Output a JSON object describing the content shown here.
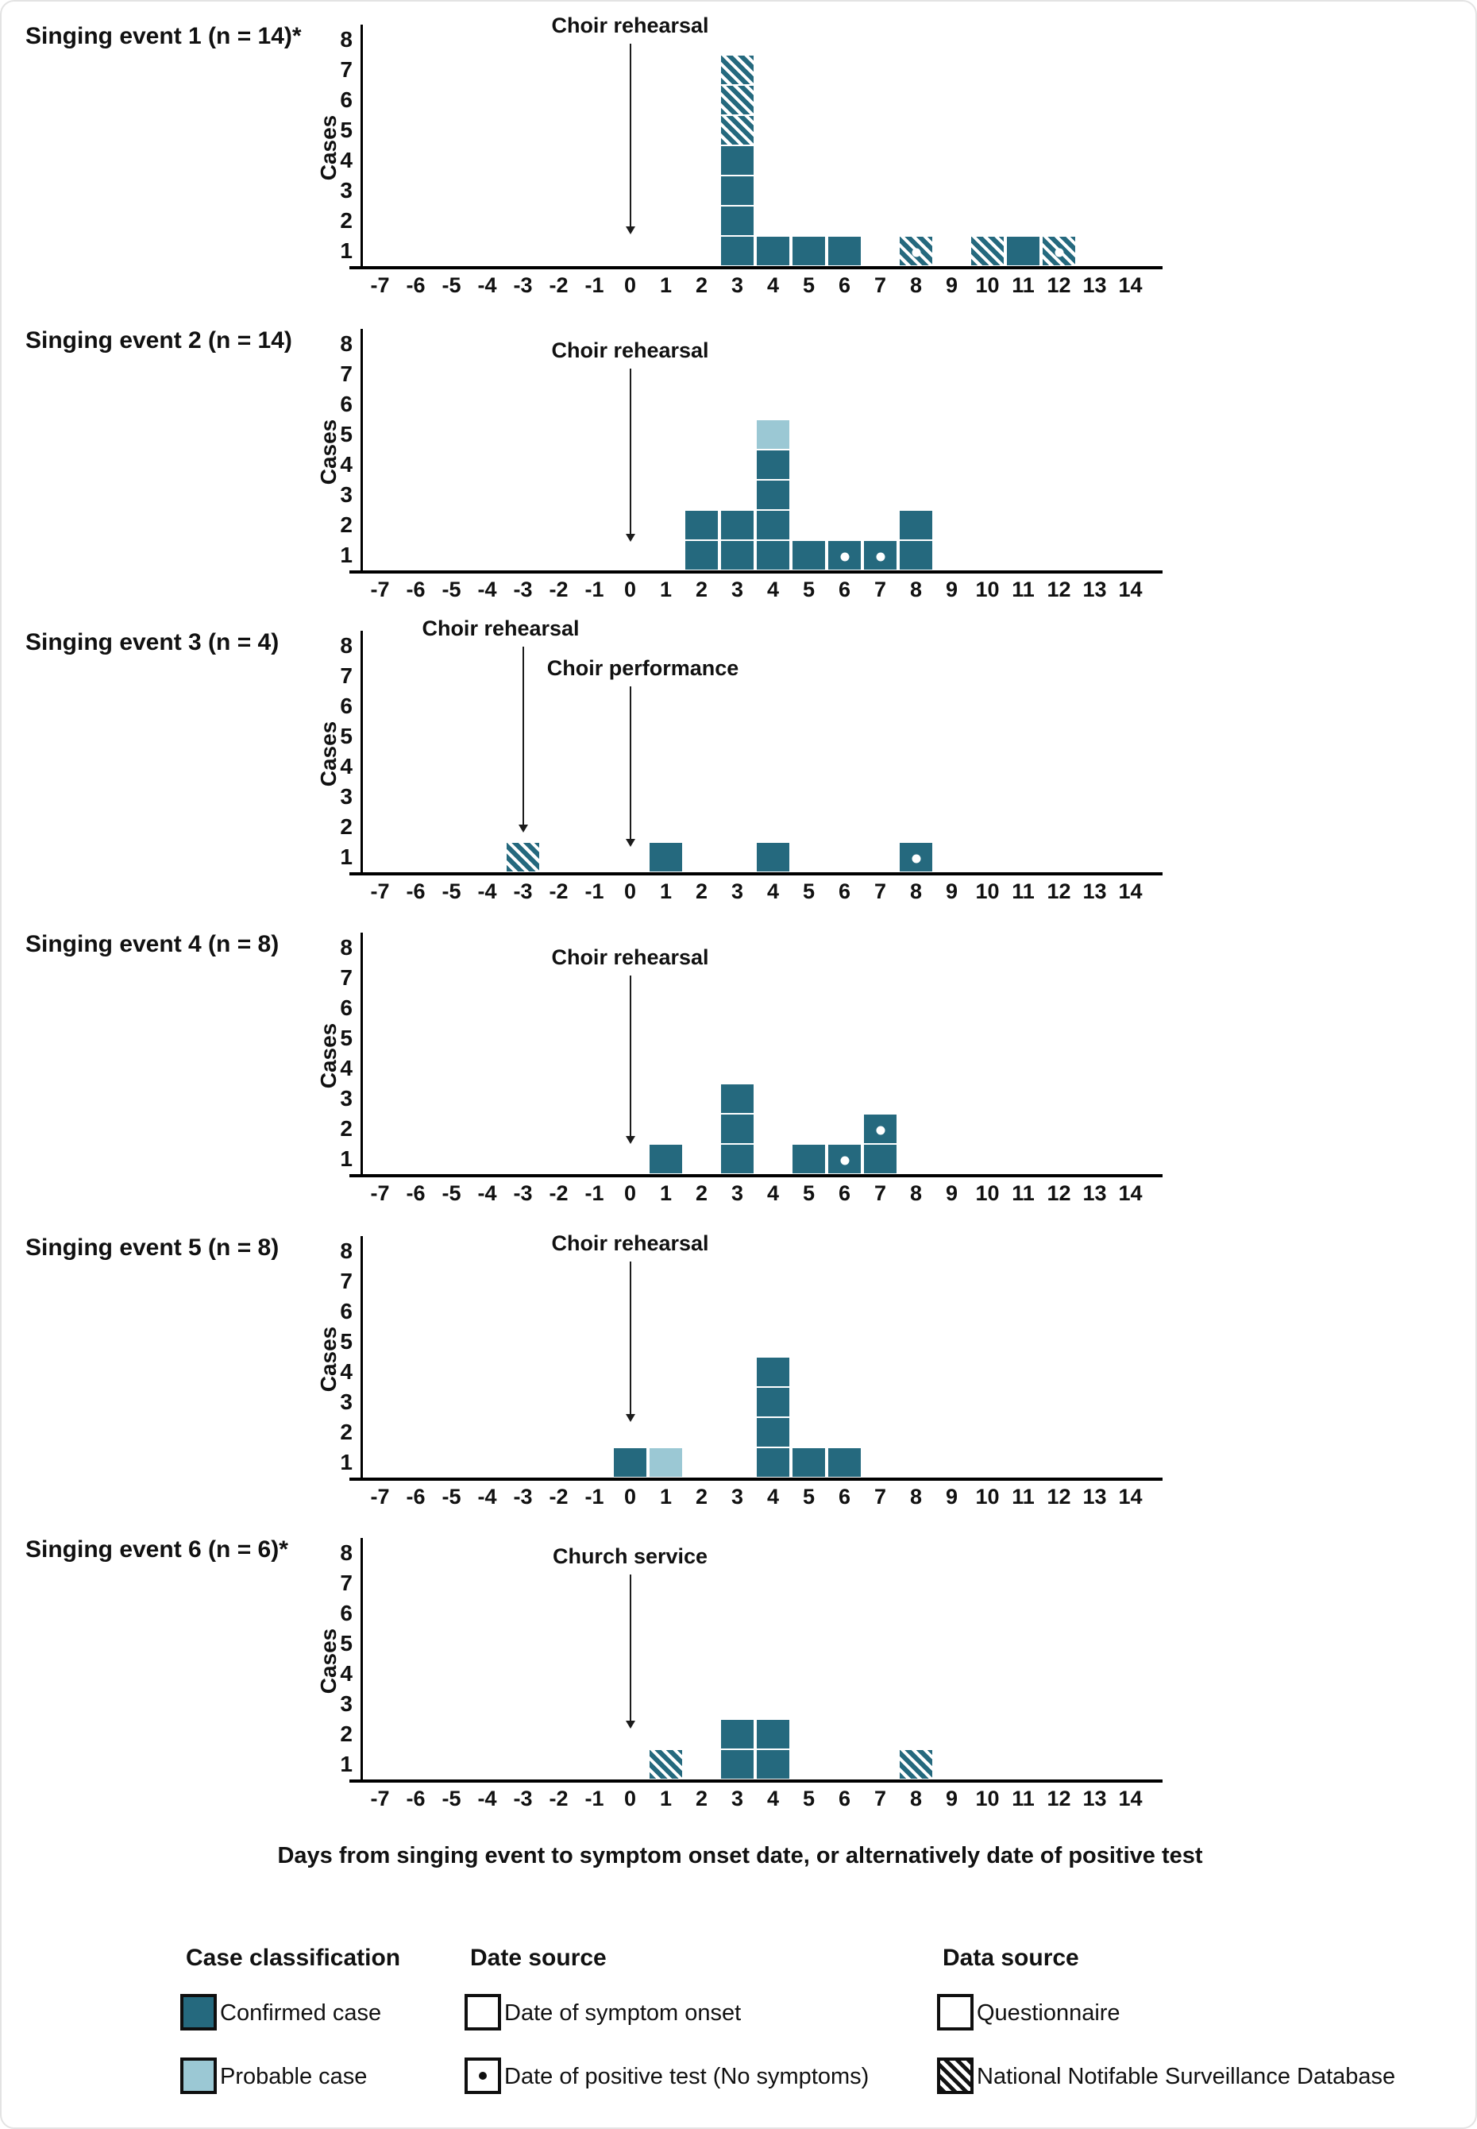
{
  "chart_data": {
    "type": "bar",
    "variant": "stacked-unit-epidemic-curve",
    "xlabel": "Days from singing event to symptom onset date, or alternatively date of positive test",
    "ylabel": "Cases",
    "ylim": [
      0,
      8
    ],
    "y_ticks": [
      1,
      2,
      3,
      4,
      5,
      6,
      7,
      8
    ],
    "x_ticks": [
      -7,
      -6,
      -5,
      -4,
      -3,
      -2,
      -1,
      0,
      1,
      2,
      3,
      4,
      5,
      6,
      7,
      8,
      9,
      10,
      11,
      12,
      13,
      14
    ],
    "grid": false,
    "case_types": {
      "confirmed": "Confirmed case (Questionnaire)",
      "probable": "Probable case",
      "nndss": "Confirmed case (National Notifable Surveillance Database)",
      "_dot_suffix": "date of positive test, no symptoms"
    },
    "colors": {
      "confirmed": "#25697e",
      "probable": "#9bc8d4",
      "axis": "#000000"
    },
    "panels": [
      {
        "title": "Singing event  1 (n = 14)*",
        "annotations": [
          {
            "label": "Choir rehearsal",
            "day": 0
          }
        ],
        "bars": [
          {
            "day": 3,
            "cases": [
              "confirmed",
              "confirmed",
              "confirmed",
              "confirmed",
              "nndss",
              "nndss",
              "nndss"
            ]
          },
          {
            "day": 4,
            "cases": [
              "confirmed"
            ]
          },
          {
            "day": 5,
            "cases": [
              "confirmed"
            ]
          },
          {
            "day": 6,
            "cases": [
              "confirmed"
            ]
          },
          {
            "day": 8,
            "cases": [
              "nndss_dot"
            ]
          },
          {
            "day": 10,
            "cases": [
              "nndss"
            ]
          },
          {
            "day": 11,
            "cases": [
              "confirmed"
            ]
          },
          {
            "day": 12,
            "cases": [
              "nndss_dot"
            ]
          }
        ]
      },
      {
        "title": "Singing event 2 (n = 14)",
        "annotations": [
          {
            "label": "Choir rehearsal",
            "day": 0
          }
        ],
        "bars": [
          {
            "day": 2,
            "cases": [
              "confirmed",
              "confirmed"
            ]
          },
          {
            "day": 3,
            "cases": [
              "confirmed",
              "confirmed"
            ]
          },
          {
            "day": 4,
            "cases": [
              "confirmed",
              "confirmed",
              "confirmed",
              "confirmed",
              "probable"
            ]
          },
          {
            "day": 5,
            "cases": [
              "confirmed"
            ]
          },
          {
            "day": 6,
            "cases": [
              "confirmed_dot"
            ]
          },
          {
            "day": 7,
            "cases": [
              "confirmed_dot"
            ]
          },
          {
            "day": 8,
            "cases": [
              "confirmed",
              "confirmed"
            ]
          }
        ]
      },
      {
        "title": "Singing event 3 (n = 4)",
        "annotations": [
          {
            "label": "Choir rehearsal",
            "day": -3
          },
          {
            "label": "Choir performance",
            "day": 0
          }
        ],
        "bars": [
          {
            "day": -3,
            "cases": [
              "nndss"
            ]
          },
          {
            "day": 1,
            "cases": [
              "confirmed"
            ]
          },
          {
            "day": 4,
            "cases": [
              "confirmed"
            ]
          },
          {
            "day": 8,
            "cases": [
              "confirmed_dot"
            ]
          }
        ]
      },
      {
        "title": "Singing event 4 (n = 8)",
        "annotations": [
          {
            "label": "Choir rehearsal",
            "day": 0
          }
        ],
        "bars": [
          {
            "day": 1,
            "cases": [
              "confirmed"
            ]
          },
          {
            "day": 3,
            "cases": [
              "confirmed",
              "confirmed",
              "confirmed"
            ]
          },
          {
            "day": 5,
            "cases": [
              "confirmed"
            ]
          },
          {
            "day": 6,
            "cases": [
              "confirmed_dot"
            ]
          },
          {
            "day": 7,
            "cases": [
              "confirmed",
              "confirmed_dot"
            ]
          }
        ]
      },
      {
        "title": "Singing event 5 (n = 8)",
        "annotations": [
          {
            "label": "Choir rehearsal",
            "day": 0
          }
        ],
        "bars": [
          {
            "day": 0,
            "cases": [
              "confirmed"
            ]
          },
          {
            "day": 1,
            "cases": [
              "probable"
            ]
          },
          {
            "day": 4,
            "cases": [
              "confirmed",
              "confirmed",
              "confirmed",
              "confirmed"
            ]
          },
          {
            "day": 5,
            "cases": [
              "confirmed"
            ]
          },
          {
            "day": 6,
            "cases": [
              "confirmed"
            ]
          }
        ]
      },
      {
        "title": "Singing event 6 (n = 6)*",
        "annotations": [
          {
            "label": "Church service",
            "day": 0
          }
        ],
        "bars": [
          {
            "day": 1,
            "cases": [
              "nndss"
            ]
          },
          {
            "day": 3,
            "cases": [
              "confirmed",
              "confirmed"
            ]
          },
          {
            "day": 4,
            "cases": [
              "confirmed",
              "confirmed"
            ]
          },
          {
            "day": 8,
            "cases": [
              "nndss"
            ]
          }
        ]
      }
    ]
  },
  "legend": {
    "groups": [
      {
        "title": "Case classification",
        "items": [
          {
            "label": "Confirmed case",
            "swatch": "confirmed"
          },
          {
            "label": "Probable case",
            "swatch": "probable"
          }
        ]
      },
      {
        "title": "Date source",
        "items": [
          {
            "label": "Date of symptom onset",
            "swatch": "plain"
          },
          {
            "label": "Date of positive test (No symptoms)",
            "swatch": "dot"
          }
        ]
      },
      {
        "title": "Data source",
        "items": [
          {
            "label": "Questionnaire",
            "swatch": "plain"
          },
          {
            "label": "National Notifable Surveillance Database",
            "swatch": "hatch-black"
          }
        ]
      }
    ]
  }
}
